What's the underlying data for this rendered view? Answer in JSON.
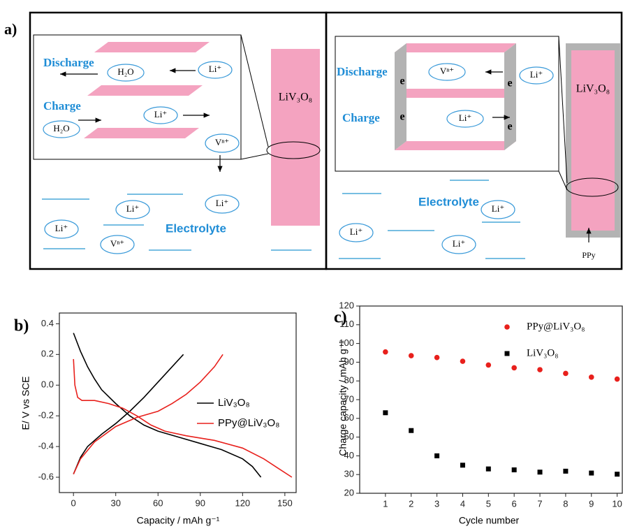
{
  "panel_a": {
    "label": "a)",
    "left": {
      "discharge": "Discharge",
      "charge": "Charge",
      "electrode": "LiV₃O₈",
      "electrolyte": "Electrolyte",
      "inset_ions": [
        "H₂O",
        "Li⁺",
        "H₂O",
        "Li⁺",
        "Vⁿ⁺"
      ],
      "ions": [
        "Li⁺",
        "Li⁺",
        "Li⁺",
        "Vⁿ⁺"
      ]
    },
    "right": {
      "discharge": "Discharge",
      "charge": "Charge",
      "electrode": "LiV₃O₈",
      "electrolyte": "Electrolyte",
      "coating": "PPy",
      "electrons": [
        "e",
        "e",
        "e",
        "e"
      ],
      "inset_ions": [
        "Vⁿ⁺",
        "Li⁺",
        "Li⁺"
      ],
      "ions": [
        "Li⁺",
        "Li⁺",
        "Li⁺"
      ]
    }
  },
  "chart_data": [
    {
      "type": "line",
      "panel_label": "b)",
      "xlabel": "Capacity / mAh g⁻¹",
      "ylabel": "E/ V vs SCE",
      "xlim": [
        -10,
        158
      ],
      "ylim": [
        -0.7,
        0.47
      ],
      "xticks": [
        0,
        30,
        60,
        90,
        120,
        150
      ],
      "yticks": [
        -0.6,
        -0.4,
        -0.2,
        {
          "value": 0,
          "label": "0.0"
        },
        0.2,
        0.4
      ],
      "legend": "center right",
      "series": [
        {
          "name": "LiV₃O₈",
          "color": "#000000",
          "x": [
            0,
            5,
            10,
            15,
            20,
            30,
            40,
            50,
            60,
            75,
            90,
            105,
            120,
            127,
            133,
            null,
            0,
            5,
            10,
            20,
            30,
            40,
            50,
            60,
            70,
            78
          ],
          "values": [
            0.34,
            0.22,
            0.12,
            0.04,
            -0.03,
            -0.12,
            -0.2,
            -0.26,
            -0.3,
            -0.34,
            -0.38,
            -0.42,
            -0.48,
            -0.53,
            -0.6,
            null,
            -0.58,
            -0.47,
            -0.4,
            -0.32,
            -0.25,
            -0.17,
            -0.08,
            0.02,
            0.12,
            0.2
          ]
        },
        {
          "name": "PPy@LiV₃O₈",
          "color": "#e8201c",
          "x": [
            0,
            1,
            3,
            6,
            15,
            25,
            35,
            45,
            55,
            65,
            80,
            100,
            120,
            135,
            145,
            155,
            null,
            0,
            5,
            15,
            30,
            45,
            60,
            70,
            80,
            90,
            100,
            106
          ],
          "values": [
            0.17,
            0.0,
            -0.08,
            -0.1,
            -0.1,
            -0.12,
            -0.15,
            -0.2,
            -0.26,
            -0.3,
            -0.33,
            -0.36,
            -0.41,
            -0.48,
            -0.54,
            -0.6,
            null,
            -0.58,
            -0.48,
            -0.37,
            -0.27,
            -0.21,
            -0.17,
            -0.12,
            -0.06,
            0.02,
            0.12,
            0.2
          ]
        }
      ]
    },
    {
      "type": "scatter",
      "panel_label": "c)",
      "xlabel": "Cycle number",
      "ylabel": "Charge capacity / mAh g⁻¹",
      "xlim": [
        0,
        10.2
      ],
      "ylim": [
        20,
        120
      ],
      "xticks": [
        1,
        2,
        3,
        4,
        5,
        6,
        7,
        8,
        9,
        10
      ],
      "yticks": [
        20,
        30,
        40,
        50,
        60,
        70,
        80,
        90,
        100,
        110,
        120
      ],
      "legend": "upper right",
      "series": [
        {
          "name": "PPy@LiV₃O₈",
          "color": "#e8201c",
          "marker": "circle",
          "x": [
            1,
            2,
            3,
            4,
            5,
            6,
            7,
            8,
            9,
            10
          ],
          "values": [
            95.5,
            93.5,
            92.5,
            90.5,
            88.5,
            87,
            86,
            84,
            82,
            81
          ]
        },
        {
          "name": "LiV₃O₈",
          "color": "#000000",
          "marker": "square",
          "x": [
            1,
            2,
            3,
            4,
            5,
            6,
            7,
            8,
            9,
            10
          ],
          "values": [
            63,
            53.5,
            40,
            35,
            33,
            32.5,
            31.3,
            31.8,
            30.8,
            30.2
          ]
        }
      ]
    }
  ]
}
